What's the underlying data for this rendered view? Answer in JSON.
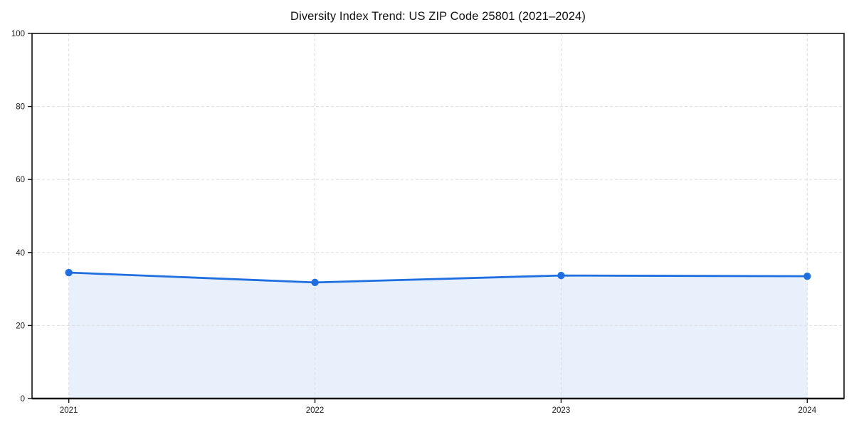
{
  "chart_data": {
    "type": "area",
    "title": "Diversity Index Trend: US ZIP Code 25801 (2021–2024)",
    "categories": [
      "2021",
      "2022",
      "2023",
      "2024"
    ],
    "values": [
      34.5,
      31.8,
      33.7,
      33.5
    ],
    "series_name": "Diversity Index",
    "xlabel": "",
    "ylabel": "",
    "ylim": [
      0,
      100
    ],
    "yticks": [
      0,
      20,
      40,
      60,
      80,
      100
    ],
    "grid": "dashed",
    "legend": "none",
    "colors": {
      "line": "#1f6fe0",
      "marker": "#1f6fe0",
      "fill": "#e8f0fc",
      "grid": "#dddddd",
      "axis": "#111111",
      "text": "#1a1a1a",
      "background": "#ffffff"
    }
  }
}
